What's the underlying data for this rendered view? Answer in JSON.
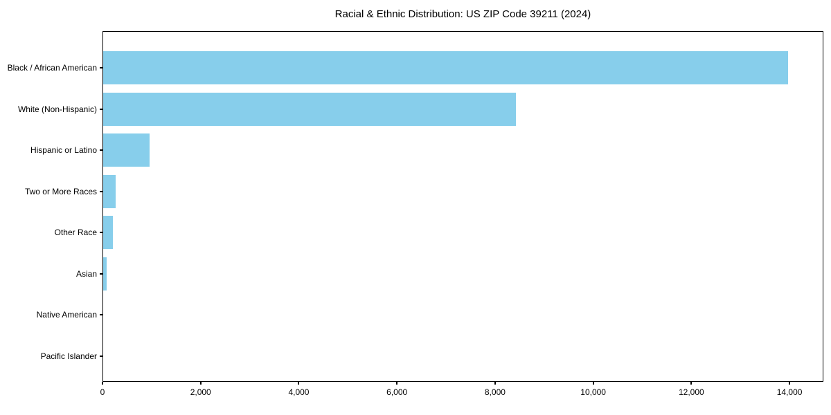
{
  "chart_data": {
    "type": "bar",
    "orientation": "horizontal",
    "title": "Racial & Ethnic Distribution: US ZIP Code 39211 (2024)",
    "categories": [
      "Black / African American",
      "White (Non-Hispanic)",
      "Hispanic or Latino",
      "Two or More Races",
      "Other Race",
      "Asian",
      "Native American",
      "Pacific Islander"
    ],
    "values": [
      13950,
      8415,
      950,
      250,
      200,
      65,
      0,
      0
    ],
    "xlabel": "",
    "ylabel": "",
    "xlim": [
      0,
      14690
    ],
    "x_ticks": [
      0,
      2000,
      4000,
      6000,
      8000,
      10000,
      12000,
      14000
    ],
    "x_tick_labels": [
      "0",
      "2,000",
      "4,000",
      "6,000",
      "8,000",
      "10,000",
      "12,000",
      "14,000"
    ],
    "bar_color": "#87CEEB",
    "grid": false,
    "legend": false
  }
}
